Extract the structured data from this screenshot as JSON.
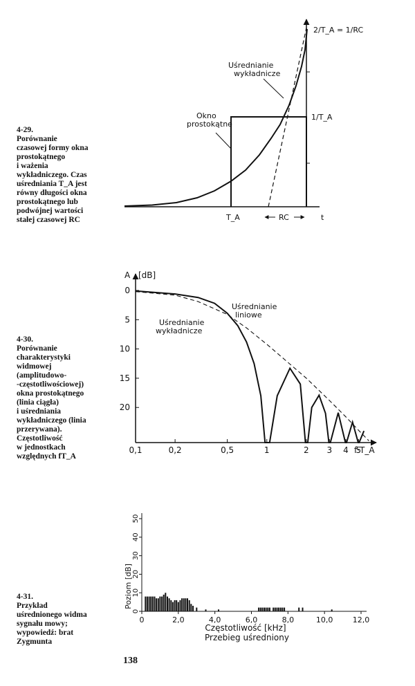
{
  "page_number": "138",
  "fig29": {
    "caption_num": "4-29.",
    "caption_lines": [
      "Porównanie",
      "czasowej formy okna",
      "prostokątnego",
      "i ważenia",
      "wykładniczego. Czas",
      "uśredniania T_A jest",
      "równy długości okna",
      "prostokątnego lub",
      "podwójnej wartości",
      "stałej czasowej RC"
    ],
    "label_exp": [
      "Uśrednianie",
      "wykładnicze"
    ],
    "label_rect": [
      "Okno",
      "prostokątne"
    ],
    "label_2ta": "2/T_A = 1/RC",
    "label_1ta": "1/T_A",
    "label_ta": "T_A",
    "label_rc": "RC",
    "label_t": "t"
  },
  "fig30": {
    "caption_num": "4-30.",
    "caption_lines": [
      "Porównanie",
      "charakterystyki",
      "widmowej",
      "(amplitudowo-",
      "-częstotliwościowej)",
      "okna prostokątnego",
      "(linia ciągła)",
      "i uśredniania",
      "wykładniczego (linia",
      "przerywana).",
      "Częstotliwość",
      "w jednostkach",
      "względnych fT_A"
    ],
    "y_axis_label": "A",
    "y_unit": "[dB]",
    "y_ticks": [
      "0",
      "5",
      "10",
      "15",
      "20"
    ],
    "x_ticks": [
      "0,1",
      "0,2",
      "0,5",
      "1",
      "2",
      "3",
      "4",
      "5"
    ],
    "x_axis_label": "f·T_A",
    "label_linear": [
      "Uśrednianie",
      "liniowe"
    ],
    "label_exp": [
      "Uśrednianie",
      "wykładnicze"
    ]
  },
  "fig31": {
    "caption_num": "4-31.",
    "caption_lines": [
      "Przykład",
      "uśrednionego widma",
      "sygnału mowy;",
      "wypowiedź: brat",
      "Zygmunta"
    ],
    "y_axis_label": "Poziom [dB]",
    "y_ticks": [
      "0",
      "10",
      "20",
      "30",
      "40",
      "50"
    ],
    "x_ticks": [
      "0",
      "2,0",
      "4,0",
      "6,0",
      "8,0",
      "10,0",
      "12,0"
    ],
    "x_axis_label": "Częstotliwość [kHz]",
    "subtitle": "Przebieg uśredniony"
  },
  "chart_data": [
    {
      "type": "line",
      "id": "fig-4-30",
      "xlabel": "f·T_A",
      "ylabel": "A [dB]",
      "x_scale": "log",
      "xlim": [
        0.1,
        6
      ],
      "ylim": [
        0,
        26
      ],
      "y_inverted": true,
      "series": [
        {
          "name": "Uśrednianie liniowe",
          "style": "solid",
          "x": [
            0.1,
            0.2,
            0.3,
            0.4,
            0.5,
            0.6,
            0.7,
            0.8,
            0.9,
            0.97,
            1.0,
            1.05,
            1.2,
            1.5,
            1.8,
            1.97,
            2.0,
            2.05,
            2.2,
            2.5,
            2.8,
            2.97,
            3.0,
            3.05,
            3.5,
            3.97,
            4.0,
            4.05,
            4.5,
            4.97,
            5.0,
            5.05,
            5.5
          ],
          "y": [
            0.1,
            0.6,
            1.2,
            2.2,
            3.9,
            6.0,
            8.8,
            12.5,
            18,
            26,
            26,
            26,
            18,
            13.3,
            16,
            26,
            26,
            26,
            20,
            17.9,
            21,
            26,
            26,
            26,
            20.9,
            26,
            26,
            26,
            22.5,
            26,
            26,
            26,
            24
          ]
        },
        {
          "name": "Uśrednianie wykładnicze",
          "style": "dashed",
          "x": [
            0.1,
            0.2,
            0.3,
            0.5,
            0.7,
            1.0,
            2.0,
            3.0,
            4.0,
            5.0,
            6.0
          ],
          "y": [
            0.2,
            0.8,
            1.9,
            4.1,
            6.4,
            9.2,
            15.0,
            18.8,
            21.6,
            23.9,
            25.7
          ]
        }
      ]
    },
    {
      "type": "bar",
      "id": "fig-4-31",
      "xlabel": "Częstotliwość [kHz]",
      "ylabel": "Poziom [dB]",
      "subtitle": "Przebieg uśredniony",
      "xlim": [
        0,
        12.5
      ],
      "ylim": [
        0,
        55
      ],
      "x": [
        0.2,
        0.3,
        0.4,
        0.5,
        0.6,
        0.7,
        0.8,
        0.9,
        1.0,
        1.1,
        1.2,
        1.3,
        1.4,
        1.5,
        1.6,
        1.7,
        1.8,
        1.9,
        2.0,
        2.1,
        2.2,
        2.3,
        2.4,
        2.5,
        2.6,
        2.7,
        2.8,
        3.0,
        3.5,
        4.2,
        6.4,
        6.5,
        6.6,
        6.7,
        6.8,
        6.9,
        7.0,
        7.2,
        7.3,
        7.4,
        7.5,
        7.6,
        7.7,
        7.8,
        8.6,
        8.8,
        10.4
      ],
      "y": [
        8,
        8,
        8,
        8,
        8,
        8,
        7,
        7,
        8,
        8,
        9,
        10,
        8,
        7,
        6,
        5,
        6,
        6,
        5,
        6,
        7,
        7,
        7,
        7,
        6,
        4,
        3,
        2,
        1,
        1,
        2,
        2,
        2,
        2,
        2,
        2,
        2,
        2,
        2,
        2,
        2,
        2,
        2,
        2,
        2,
        2,
        1
      ]
    }
  ]
}
